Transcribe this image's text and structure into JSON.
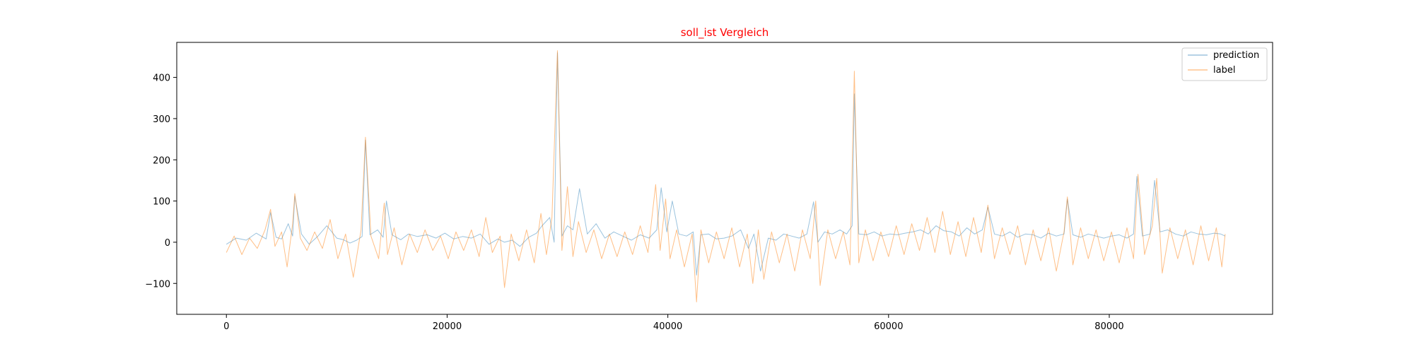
{
  "chart_data": {
    "type": "line",
    "title": "soll_ist Vergleich",
    "title_color": "#ff0000",
    "xlabel": "",
    "ylabel": "",
    "xlim": [
      -4500,
      94800
    ],
    "ylim": [
      -175,
      485
    ],
    "xticks": [
      0,
      20000,
      40000,
      60000,
      80000
    ],
    "xtick_labels": [
      "0",
      "20000",
      "40000",
      "60000",
      "80000"
    ],
    "yticks": [
      -100,
      0,
      100,
      200,
      300,
      400
    ],
    "ytick_labels": [
      "−100",
      "0",
      "100",
      "200",
      "300",
      "400"
    ],
    "grid": false,
    "legend_position": "upper right",
    "series": [
      {
        "name": "prediction",
        "color": "#1f77b4",
        "line_width": 1,
        "opacity": 0.45,
        "x": [
          0,
          900,
          1800,
          2700,
          3600,
          4000,
          4500,
          5000,
          5600,
          6000,
          6200,
          6800,
          7500,
          8300,
          9100,
          10000,
          10600,
          11200,
          11800,
          12300,
          12600,
          13000,
          13700,
          14200,
          14500,
          15000,
          15800,
          16500,
          17300,
          18200,
          19000,
          19800,
          20600,
          21400,
          22200,
          23000,
          23800,
          24600,
          25200,
          25900,
          26600,
          27400,
          28100,
          28600,
          29300,
          29700,
          30000,
          30400,
          30900,
          31400,
          32000,
          32700,
          33500,
          34300,
          35100,
          35900,
          36700,
          37500,
          38300,
          39000,
          39400,
          39900,
          40400,
          41000,
          41700,
          42300,
          42600,
          43000,
          43700,
          44400,
          45100,
          45800,
          46600,
          47300,
          47800,
          48400,
          49100,
          49800,
          50500,
          51200,
          51900,
          52600,
          53200,
          53600,
          54200,
          54900,
          55600,
          56200,
          56700,
          56900,
          57300,
          58000,
          58700,
          59400,
          60100,
          60800,
          61500,
          62200,
          62900,
          63600,
          64300,
          65000,
          65700,
          66400,
          67100,
          67800,
          68500,
          69000,
          69600,
          70300,
          71000,
          71700,
          72400,
          73100,
          73800,
          74500,
          75200,
          75900,
          76200,
          76700,
          77400,
          78100,
          78800,
          79500,
          80200,
          80900,
          81600,
          82200,
          82500,
          83000,
          83700,
          84100,
          84600,
          85300,
          86000,
          86700,
          87400,
          88100,
          88800,
          89500,
          90100,
          90500
        ],
        "values": [
          -5,
          10,
          5,
          22,
          8,
          72,
          12,
          8,
          45,
          15,
          112,
          20,
          -5,
          15,
          40,
          10,
          6,
          -2,
          5,
          14,
          248,
          18,
          30,
          12,
          100,
          18,
          6,
          20,
          14,
          18,
          10,
          22,
          8,
          14,
          10,
          20,
          -5,
          8,
          0,
          5,
          -10,
          12,
          22,
          40,
          60,
          0,
          460,
          15,
          40,
          30,
          130,
          20,
          45,
          10,
          25,
          15,
          5,
          18,
          10,
          30,
          132,
          25,
          100,
          20,
          15,
          25,
          -80,
          18,
          20,
          8,
          10,
          15,
          30,
          -15,
          20,
          -70,
          10,
          5,
          20,
          15,
          10,
          20,
          98,
          0,
          25,
          20,
          30,
          20,
          40,
          360,
          20,
          18,
          25,
          15,
          20,
          18,
          22,
          25,
          30,
          20,
          40,
          28,
          25,
          15,
          35,
          20,
          30,
          85,
          20,
          15,
          25,
          12,
          20,
          18,
          10,
          22,
          15,
          20,
          105,
          18,
          12,
          20,
          15,
          10,
          15,
          18,
          10,
          20,
          160,
          15,
          20,
          150,
          25,
          30,
          20,
          15,
          25,
          20,
          18,
          22,
          20,
          15
        ]
      },
      {
        "name": "label",
        "color": "#ff7f0e",
        "line_width": 1,
        "opacity": 0.5,
        "x": [
          0,
          700,
          1400,
          2100,
          2800,
          3500,
          4000,
          4400,
          5000,
          5500,
          6000,
          6200,
          6700,
          7300,
          8000,
          8700,
          9400,
          10100,
          10800,
          11500,
          12200,
          12600,
          13100,
          13800,
          14300,
          14600,
          15200,
          15900,
          16600,
          17300,
          18000,
          18700,
          19400,
          20100,
          20800,
          21500,
          22200,
          22900,
          23500,
          24100,
          24800,
          25200,
          25800,
          26500,
          27200,
          27900,
          28500,
          29000,
          29500,
          30000,
          30400,
          30900,
          31400,
          31900,
          32600,
          33300,
          34000,
          34700,
          35400,
          36100,
          36800,
          37500,
          38200,
          38900,
          39300,
          39800,
          40200,
          40800,
          41500,
          42200,
          42600,
          43000,
          43700,
          44400,
          45100,
          45800,
          46500,
          47200,
          47700,
          48200,
          48700,
          49400,
          50100,
          50800,
          51500,
          52200,
          52900,
          53400,
          53800,
          54500,
          55200,
          55900,
          56500,
          56900,
          57300,
          57900,
          58600,
          59300,
          60000,
          60700,
          61400,
          62100,
          62800,
          63500,
          64200,
          64900,
          65600,
          66300,
          67000,
          67700,
          68400,
          69000,
          69600,
          70300,
          71000,
          71700,
          72400,
          73100,
          73800,
          74500,
          75200,
          75900,
          76200,
          76700,
          77400,
          78100,
          78800,
          79500,
          80200,
          80900,
          81600,
          82200,
          82600,
          83200,
          83900,
          84300,
          84800,
          85500,
          86200,
          86900,
          87600,
          88300,
          89000,
          89700,
          90200,
          90500
        ],
        "values": [
          -25,
          15,
          -30,
          10,
          -15,
          30,
          80,
          -10,
          25,
          -60,
          45,
          118,
          10,
          -20,
          25,
          -15,
          55,
          -40,
          20,
          -85,
          30,
          255,
          15,
          -40,
          95,
          -30,
          35,
          -55,
          20,
          -25,
          30,
          -20,
          15,
          -40,
          25,
          -20,
          30,
          -35,
          60,
          -25,
          15,
          -110,
          20,
          -45,
          30,
          -50,
          70,
          -30,
          60,
          465,
          -20,
          135,
          -35,
          50,
          -25,
          30,
          -40,
          20,
          -35,
          25,
          -30,
          40,
          -25,
          140,
          -20,
          105,
          -40,
          30,
          -60,
          20,
          -145,
          30,
          -50,
          25,
          -40,
          35,
          -60,
          20,
          -100,
          30,
          -90,
          25,
          -50,
          20,
          -70,
          30,
          -40,
          100,
          -105,
          30,
          -40,
          25,
          -55,
          415,
          -50,
          30,
          -45,
          25,
          -35,
          40,
          -30,
          45,
          -20,
          60,
          -25,
          75,
          -30,
          50,
          -35,
          60,
          -25,
          90,
          -40,
          35,
          -30,
          40,
          -55,
          30,
          -45,
          35,
          -70,
          25,
          110,
          -55,
          35,
          -40,
          30,
          -45,
          25,
          -50,
          35,
          -40,
          165,
          -30,
          40,
          155,
          -75,
          35,
          -40,
          30,
          -55,
          40,
          -45,
          35,
          -60,
          20
        ]
      }
    ]
  }
}
